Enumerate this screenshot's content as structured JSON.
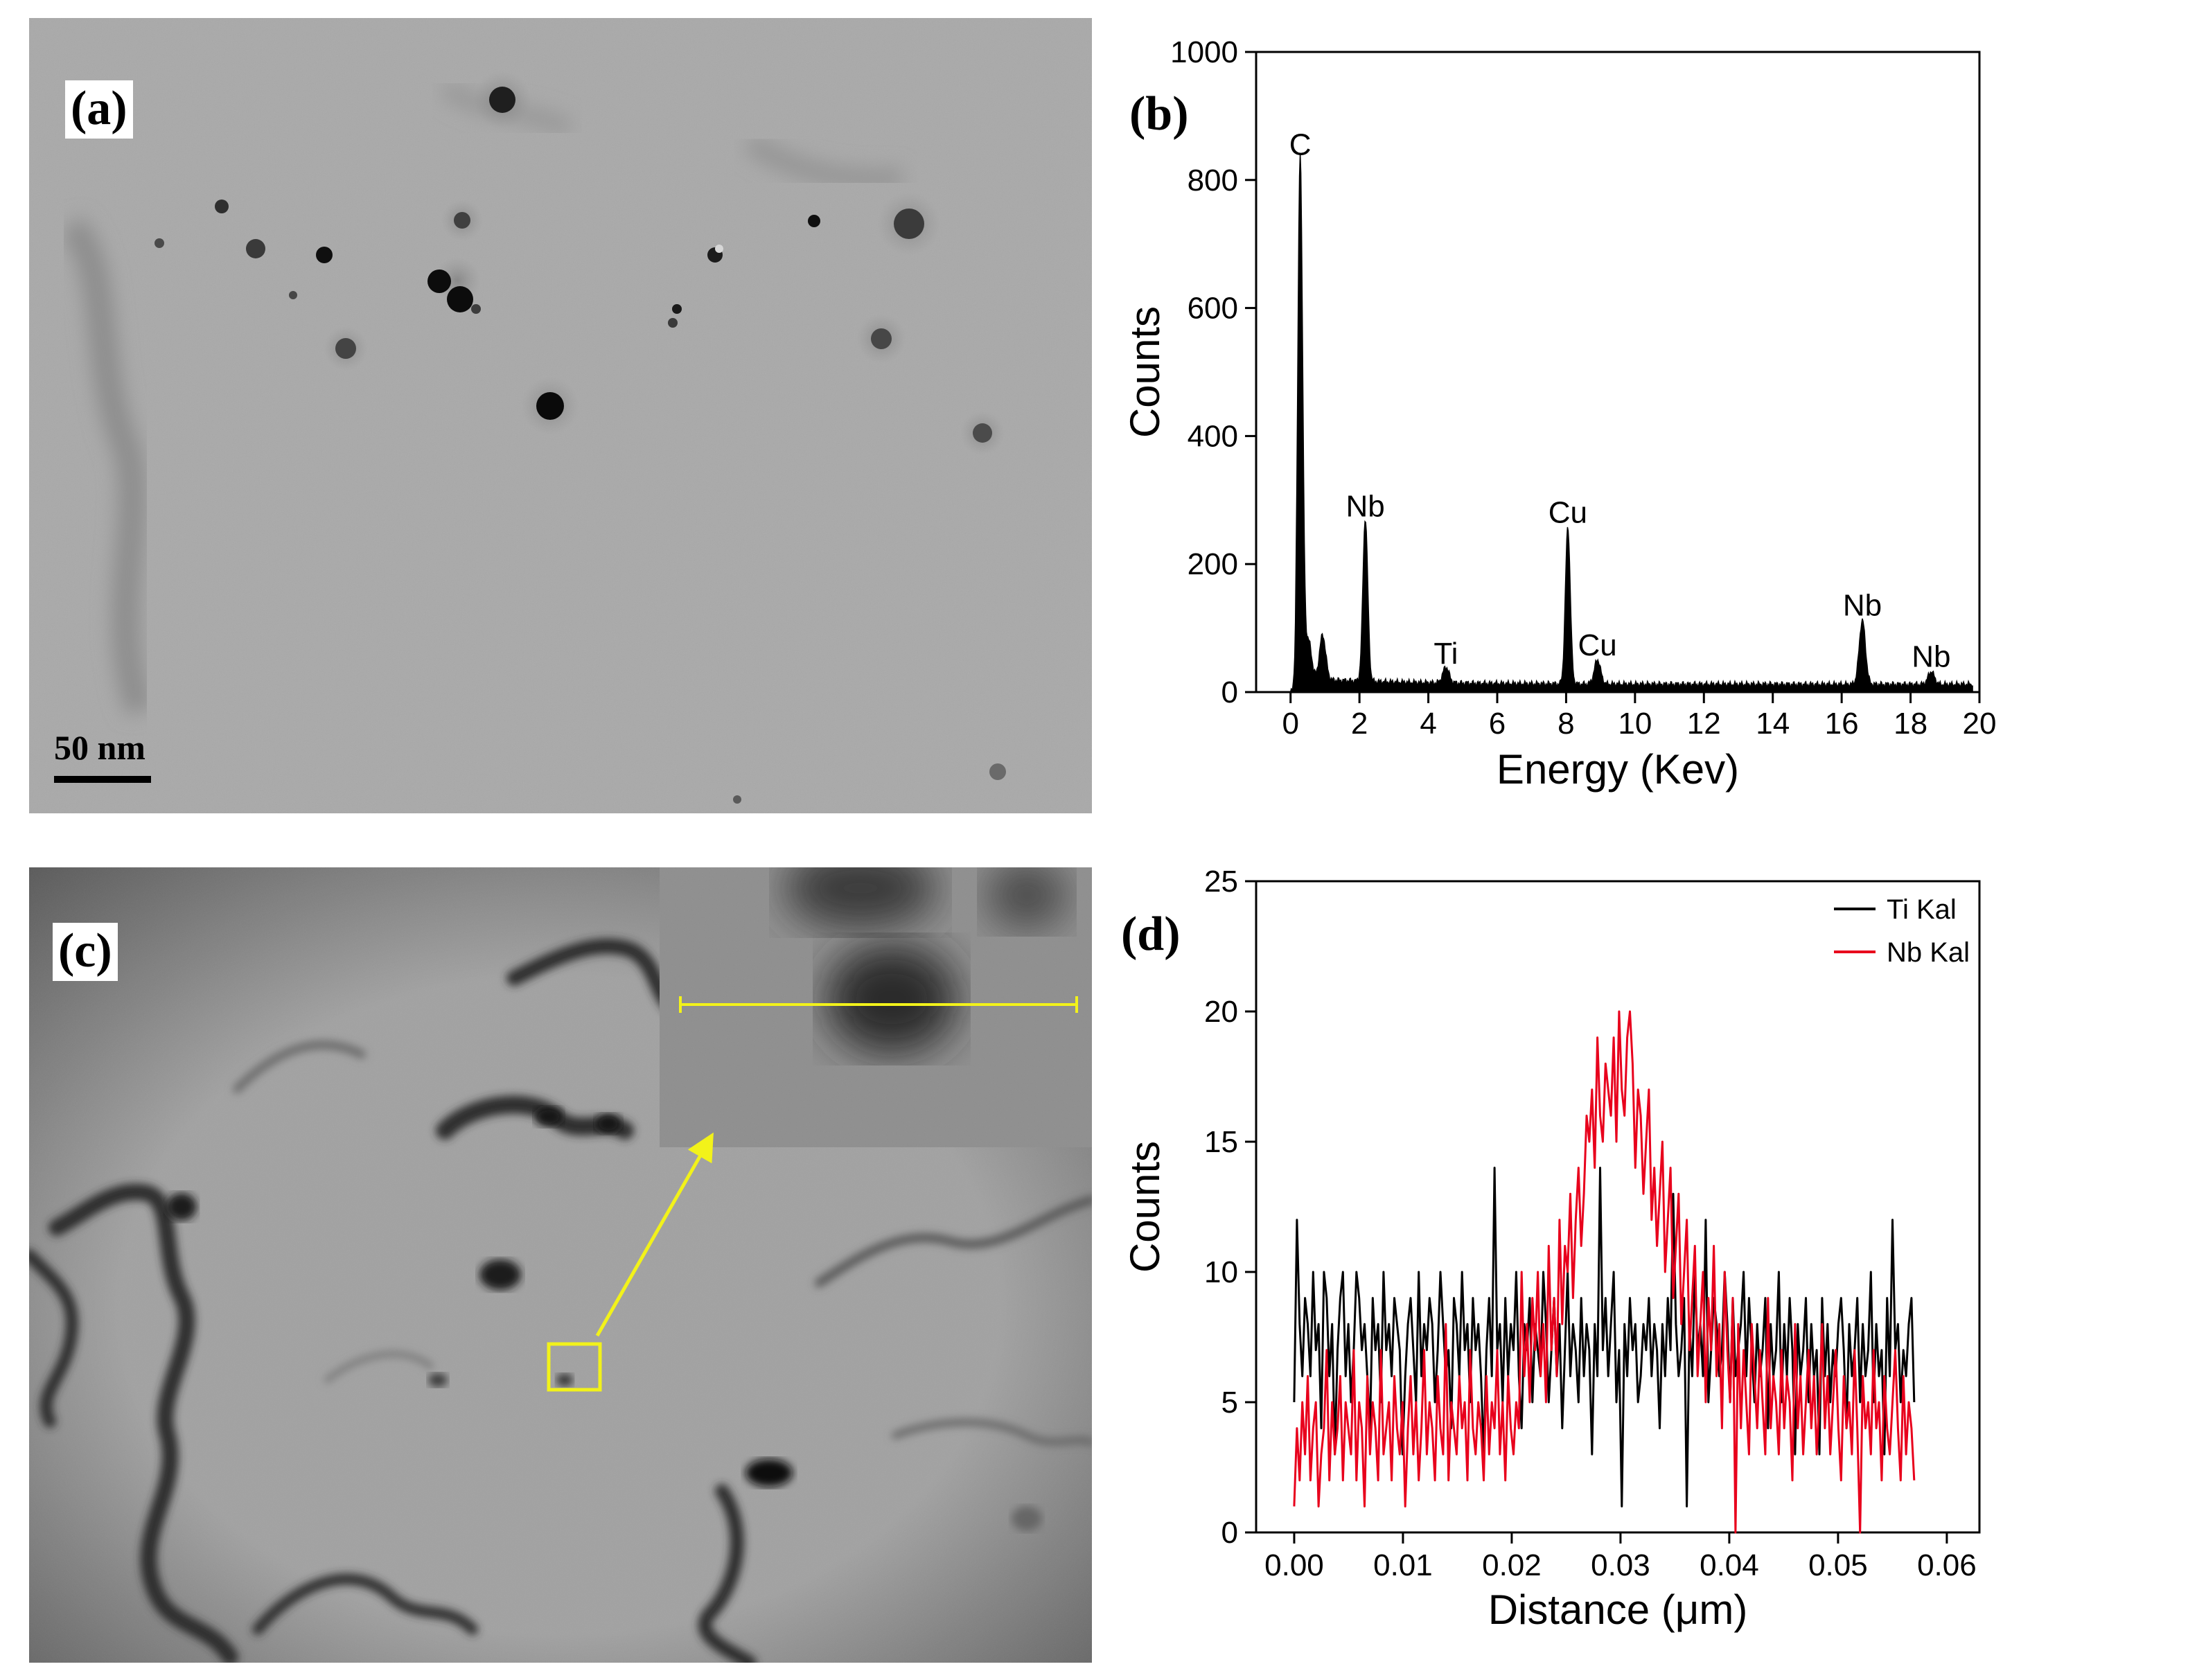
{
  "panels": {
    "a": {
      "label": "(a)",
      "scale_bar": "50 nm"
    },
    "b": {
      "label": "(b)"
    },
    "c": {
      "label": "(c)"
    },
    "d": {
      "label": "(d)"
    }
  },
  "colors": {
    "ti_series": "#000000",
    "nb_series": "#e8001c",
    "marker": "#f2f21a"
  },
  "chart_data": [
    {
      "type": "area",
      "panel": "b",
      "xlabel": "Energy (Kev)",
      "ylabel": "Counts",
      "xlim": [
        -1,
        20
      ],
      "ylim": [
        0,
        1000
      ],
      "xticks": [
        0,
        2,
        4,
        6,
        8,
        10,
        12,
        14,
        16,
        18,
        20
      ],
      "yticks": [
        0,
        200,
        400,
        600,
        800,
        1000
      ],
      "peaks": [
        {
          "label": "C",
          "energy": 0.28,
          "counts": 820
        },
        {
          "label": "Nb",
          "energy": 2.17,
          "counts": 255
        },
        {
          "label": "Ti",
          "energy": 4.51,
          "counts": 25
        },
        {
          "label": "Cu",
          "energy": 8.05,
          "counts": 245
        },
        {
          "label": "Cu",
          "energy": 8.91,
          "counts": 38
        },
        {
          "label": "Nb",
          "energy": 16.6,
          "counts": 100
        },
        {
          "label": "Nb",
          "energy": 18.6,
          "counts": 20
        }
      ],
      "minor_peaks": [
        {
          "energy": 0.52,
          "counts": 60
        },
        {
          "energy": 0.93,
          "counts": 70
        }
      ]
    },
    {
      "type": "line",
      "panel": "d",
      "xlabel": "Distance (μm)",
      "ylabel": "Counts",
      "xlim": [
        -0.0035,
        0.063
      ],
      "ylim": [
        0,
        25
      ],
      "xtick_labels": [
        "0.00",
        "0.01",
        "0.02",
        "0.03",
        "0.04",
        "0.05",
        "0.06"
      ],
      "yticks": [
        0,
        5,
        10,
        15,
        20,
        25
      ],
      "legend_position": "top-right",
      "series": [
        {
          "name": "Ti Kal",
          "x_range": [
            0,
            0.057
          ],
          "points": 230,
          "values": [
            5,
            12,
            8,
            6,
            9,
            8,
            6,
            10,
            7,
            8,
            4,
            10,
            9,
            6,
            8,
            3,
            7,
            9,
            10,
            6,
            8,
            5,
            7,
            10,
            9,
            7,
            8,
            6,
            4,
            9,
            7,
            8,
            5,
            10,
            7,
            8,
            6,
            9,
            8,
            7,
            3,
            6,
            8,
            9,
            7,
            5,
            10,
            6,
            8,
            7,
            9,
            8,
            5,
            7,
            10,
            8,
            6,
            7,
            4,
            9,
            8,
            6,
            10,
            7,
            8,
            5,
            9,
            7,
            8,
            6,
            3,
            7,
            9,
            6,
            14,
            7,
            8,
            5,
            9,
            6,
            8,
            7,
            10,
            6,
            4,
            8,
            7,
            9,
            5,
            8,
            7,
            6,
            10,
            8,
            5,
            7,
            9,
            6,
            8,
            4,
            7,
            10,
            6,
            8,
            7,
            5,
            9,
            6,
            8,
            7,
            3,
            8,
            6,
            14,
            7,
            9,
            6,
            8,
            10,
            5,
            7,
            1,
            8,
            6,
            9,
            7,
            8,
            5,
            6,
            8,
            7,
            9,
            6,
            8,
            7,
            4,
            8,
            6,
            9,
            7,
            13,
            8,
            6,
            7,
            9,
            1,
            8,
            6,
            10,
            7,
            8,
            6,
            12,
            5,
            7,
            9,
            8,
            6,
            7,
            10,
            8,
            5,
            9,
            6,
            7,
            8,
            10,
            6,
            9,
            7,
            5,
            8,
            6,
            7,
            9,
            4,
            8,
            6,
            7,
            10,
            5,
            8,
            6,
            9,
            7,
            3,
            8,
            6,
            7,
            9,
            5,
            8,
            6,
            7,
            3,
            9,
            6,
            8,
            5,
            7,
            6,
            8,
            9,
            7,
            4,
            8,
            6,
            7,
            9,
            5,
            8,
            6,
            7,
            10,
            5,
            8,
            6,
            7,
            3,
            9,
            6,
            12,
            7,
            8,
            5,
            7,
            6,
            8,
            9,
            5
          ],
          "peaks": [
            {
              "x": 0.0003,
              "y": 12
            },
            {
              "x": 0.0152,
              "y": 14
            },
            {
              "x": 0.0256,
              "y": 14
            },
            {
              "x": 0.029,
              "y": 13
            },
            {
              "x": 0.0538,
              "y": 12
            }
          ]
        },
        {
          "name": "Nb Kal",
          "x_range": [
            0,
            0.057
          ],
          "points": 230,
          "values": [
            1,
            4,
            2,
            5,
            3,
            6,
            2,
            4,
            5,
            1,
            3,
            4,
            7,
            2,
            5,
            3,
            4,
            6,
            2,
            5,
            4,
            3,
            7,
            2,
            5,
            4,
            1,
            6,
            3,
            5,
            4,
            2,
            7,
            3,
            4,
            5,
            2,
            6,
            4,
            3,
            5,
            1,
            4,
            6,
            3,
            5,
            2,
            4,
            7,
            3,
            5,
            4,
            2,
            6,
            4,
            3,
            8,
            2,
            5,
            4,
            3,
            6,
            4,
            5,
            2,
            7,
            4,
            3,
            5,
            4,
            2,
            6,
            3,
            5,
            4,
            7,
            3,
            5,
            2,
            6,
            4,
            3,
            5,
            4,
            10,
            6,
            8,
            5,
            9,
            7,
            10,
            6,
            8,
            5,
            11,
            7,
            9,
            6,
            12,
            8,
            11,
            10,
            13,
            9,
            12,
            14,
            11,
            13,
            16,
            15,
            17,
            14,
            19,
            16,
            15,
            18,
            17,
            16,
            19,
            15,
            20,
            17,
            16,
            19,
            20,
            18,
            14,
            17,
            16,
            13,
            15,
            17,
            12,
            14,
            11,
            13,
            15,
            10,
            12,
            14,
            9,
            11,
            13,
            8,
            10,
            12,
            7,
            9,
            11,
            6,
            8,
            10,
            5,
            9,
            7,
            11,
            6,
            8,
            4,
            10,
            7,
            5,
            9,
            0,
            8,
            4,
            7,
            5,
            3,
            8,
            6,
            4,
            7,
            5,
            3,
            9,
            4,
            6,
            5,
            3,
            7,
            4,
            6,
            5,
            2,
            8,
            4,
            6,
            3,
            5,
            7,
            4,
            6,
            3,
            5,
            8,
            4,
            6,
            3,
            5,
            7,
            4,
            2,
            6,
            4,
            5,
            3,
            7,
            4,
            0,
            6,
            4,
            5,
            3,
            7,
            4,
            5,
            2,
            6,
            4,
            3,
            5,
            7,
            4,
            2,
            6,
            3,
            5,
            4,
            2
          ],
          "peaks": [
            {
              "x": 0.0302,
              "y": 19
            },
            {
              "x": 0.0318,
              "y": 20
            },
            {
              "x": 0.0333,
              "y": 20
            },
            {
              "x": 0.0432,
              "y": 0
            },
            {
              "x": 0.0533,
              "y": 0
            }
          ]
        }
      ]
    }
  ]
}
